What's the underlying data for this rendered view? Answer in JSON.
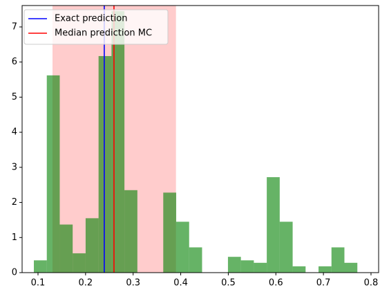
{
  "chart_data": {
    "type": "histogram",
    "bins": [
      0.0913,
      0.1185,
      0.1457,
      0.1729,
      0.2001,
      0.2273,
      0.2545,
      0.2817,
      0.3089,
      0.3361,
      0.3633,
      0.3905,
      0.4177,
      0.4449,
      0.4721,
      0.4993,
      0.5265,
      0.5537,
      0.5809,
      0.6081,
      0.6353,
      0.6625,
      0.6897,
      0.7169,
      0.7441,
      0.7713
    ],
    "counts": [
      0.35,
      5.62,
      1.37,
      0.55,
      1.55,
      6.17,
      7.45,
      2.35,
      0,
      0,
      2.28,
      1.45,
      0.72,
      0,
      0,
      0.45,
      0.35,
      0.28,
      2.72,
      1.45,
      0.18,
      0,
      0.18,
      0.72,
      0.28
    ],
    "color": "green",
    "span": {
      "xlim": [
        0.1305,
        0.39
      ],
      "color": "red"
    },
    "lines": [
      {
        "name": "Exact prediction",
        "color": "blue",
        "x": 0.2393
      },
      {
        "name": "Median prediction MC",
        "color": "red",
        "x": 0.2597
      }
    ],
    "legend": "upper left",
    "xlim": [
      0.0666,
      0.816
    ],
    "ylim": [
      0,
      7.61
    ],
    "xticks": [
      0.1,
      0.2,
      0.3,
      0.4,
      0.5,
      0.6,
      0.7,
      0.8
    ],
    "yticks": [
      0,
      1,
      2,
      3,
      4,
      5,
      6,
      7
    ]
  }
}
